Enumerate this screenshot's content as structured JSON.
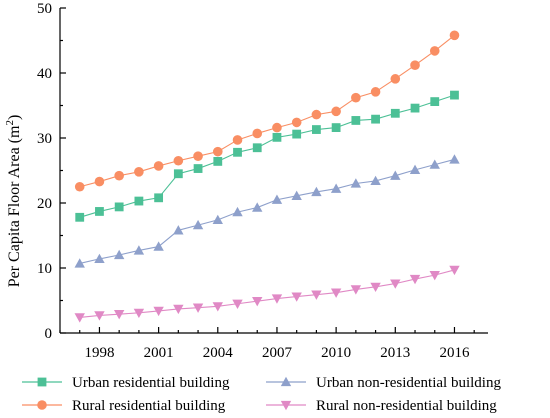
{
  "chart_data": {
    "type": "line",
    "title": "",
    "xlabel": "",
    "ylabel_main": "Per Capita Floor Area (m",
    "ylabel_sup": "2",
    "ylabel_close": ")",
    "ylim": [
      0,
      50
    ],
    "xlim": [
      1996,
      2017.7
    ],
    "yticks": [
      0,
      10,
      20,
      30,
      40,
      50
    ],
    "xticks": [
      1998,
      2001,
      2004,
      2007,
      2010,
      2013,
      2016
    ],
    "grid": false,
    "legend_position": "bottom",
    "x": [
      1997,
      1998,
      1999,
      2000,
      2001,
      2002,
      2003,
      2004,
      2005,
      2006,
      2007,
      2008,
      2009,
      2010,
      2011,
      2012,
      2013,
      2014,
      2015,
      2016
    ],
    "series": [
      {
        "name": "Urban residential building",
        "color": "#4cc096",
        "marker": "square",
        "values": [
          17.8,
          18.7,
          19.4,
          20.3,
          20.8,
          24.5,
          25.3,
          26.4,
          27.8,
          28.5,
          30.1,
          30.6,
          31.3,
          31.6,
          32.7,
          32.9,
          33.8,
          34.6,
          35.6,
          36.6
        ]
      },
      {
        "name": "Urban non-residential building",
        "color": "#8ea0cb",
        "marker": "triangle-up",
        "values": [
          10.7,
          11.4,
          12.0,
          12.7,
          13.3,
          15.8,
          16.6,
          17.4,
          18.6,
          19.3,
          20.5,
          21.1,
          21.7,
          22.2,
          23.0,
          23.4,
          24.2,
          25.1,
          25.9,
          26.7
        ]
      },
      {
        "name": "Rural residential building",
        "color": "#f98e63",
        "marker": "circle",
        "values": [
          22.5,
          23.3,
          24.2,
          24.8,
          25.7,
          26.5,
          27.2,
          27.9,
          29.7,
          30.7,
          31.6,
          32.4,
          33.6,
          34.1,
          36.2,
          37.1,
          39.1,
          41.2,
          43.4,
          45.8
        ]
      },
      {
        "name": "Rural non-residential building",
        "color": "#e089c5",
        "marker": "triangle-down",
        "values": [
          2.4,
          2.7,
          2.9,
          3.1,
          3.4,
          3.7,
          3.9,
          4.1,
          4.5,
          4.9,
          5.3,
          5.6,
          5.9,
          6.2,
          6.7,
          7.1,
          7.6,
          8.3,
          8.9,
          9.7
        ]
      }
    ]
  }
}
